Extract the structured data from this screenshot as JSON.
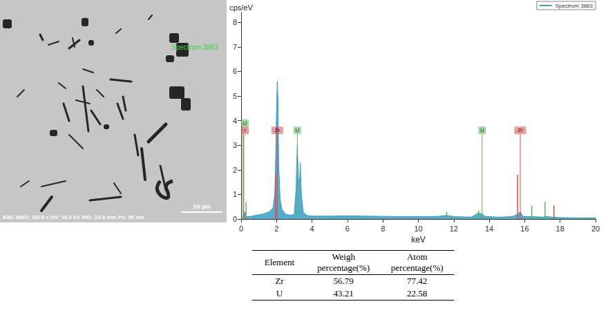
{
  "chart_data": {
    "type": "line",
    "x_label": "keV",
    "y_label": "cps/eV",
    "xlim": [
      0,
      20
    ],
    "xticks": [
      0,
      2,
      4,
      6,
      8,
      10,
      12,
      14,
      16,
      18,
      20
    ],
    "ylim": [
      0,
      8.4
    ],
    "yticks": [
      0,
      1,
      2,
      3,
      4,
      5,
      6,
      7,
      8
    ],
    "grid": false,
    "legend": "top-right",
    "series": [
      {
        "name": "Spectrum 3863",
        "color": "#3a9cc4",
        "x": [
          0,
          0.1,
          0.2,
          0.3,
          0.5,
          0.8,
          1.2,
          1.6,
          1.8,
          1.9,
          1.95,
          2.0,
          2.04,
          2.08,
          2.12,
          2.2,
          2.3,
          2.5,
          2.8,
          3.0,
          3.1,
          3.17,
          3.24,
          3.3,
          3.34,
          3.4,
          3.5,
          3.7,
          4,
          5,
          6,
          7,
          8,
          9,
          10,
          11,
          11.6,
          12,
          13,
          13.4,
          13.6,
          13.8,
          14.5,
          15.3,
          15.6,
          15.75,
          15.9,
          16.4,
          17,
          17.2,
          17.6,
          18,
          19,
          20
        ],
        "values": [
          0,
          0.05,
          0.3,
          0.1,
          0.1,
          0.15,
          0.2,
          0.3,
          0.45,
          1.0,
          2.5,
          4.5,
          5.6,
          4.8,
          2.2,
          0.8,
          0.4,
          0.2,
          0.15,
          0.2,
          1.2,
          3.0,
          1.5,
          1.6,
          2.3,
          1.0,
          0.3,
          0.15,
          0.12,
          0.12,
          0.13,
          0.12,
          0.11,
          0.1,
          0.1,
          0.1,
          0.15,
          0.1,
          0.08,
          0.25,
          0.2,
          0.1,
          0.08,
          0.1,
          0.2,
          0.3,
          0.1,
          0.1,
          0.08,
          0.1,
          0.08,
          0.06,
          0.05,
          0.05
        ]
      }
    ],
    "element_markers": [
      {
        "label": "U",
        "x": 0.1,
        "height": 3.75,
        "color": "#5cb85c"
      },
      {
        "label": "r",
        "x": 0.15,
        "height": 3.45,
        "color": "#e04848"
      },
      {
        "label": "Zr",
        "x": 2.04,
        "height": 3.45,
        "color": "#e04848"
      },
      {
        "label": "U",
        "x": 3.17,
        "height": 3.45,
        "color": "#5cb85c"
      },
      {
        "label": "U",
        "x": 13.6,
        "height": 3.45,
        "color": "#5cb85c"
      },
      {
        "label": "Zr",
        "x": 15.75,
        "height": 3.45,
        "color": "#e04848"
      }
    ],
    "element_lines": [
      {
        "color": "#e04848",
        "x": [
          1.95,
          15.6,
          17.65
        ],
        "values": [
          1.8,
          1.8,
          0.55
        ]
      },
      {
        "color": "#5cb85c",
        "x": [
          0.28,
          11.6,
          13.4,
          16.4,
          17.15
        ],
        "values": [
          0.7,
          0.3,
          0.35,
          0.55,
          0.7
        ]
      }
    ]
  },
  "image": {
    "label": "Spectrum 3863",
    "label_color": "#3ecf3e",
    "info": "BSE MAG: 2573 x HV: 30.0 kV WD: 23.3 mm Px: 90 nm",
    "scale": "10 µm"
  },
  "table": {
    "columns": [
      "Element",
      "Weigh percentage(%)",
      "Atom percentage(%)"
    ],
    "rows": [
      [
        "Zr",
        56.79,
        77.42
      ],
      [
        "U",
        43.21,
        22.58
      ]
    ]
  }
}
